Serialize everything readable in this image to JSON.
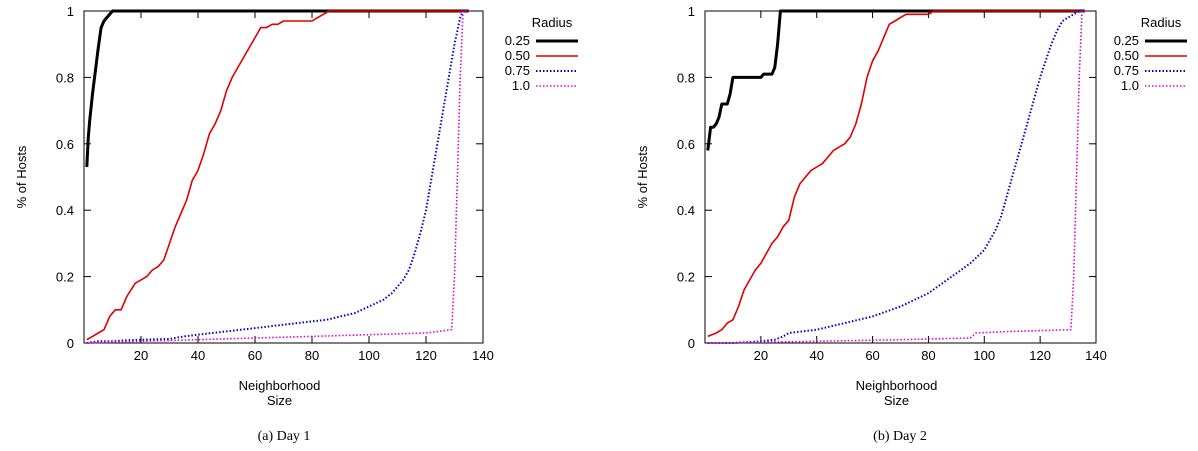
{
  "charts": [
    {
      "caption": "(a) Day 1",
      "chart_data": {
        "type": "line",
        "xlabel": [
          "Neighborhood",
          "Size"
        ],
        "ylabel": "% of Hosts",
        "xlim": [
          0,
          140
        ],
        "ylim": [
          0,
          1
        ],
        "xticks": [
          20,
          40,
          60,
          80,
          100,
          120,
          140
        ],
        "yticks": [
          0,
          0.2,
          0.4,
          0.6,
          0.8,
          1
        ],
        "ytick_labels": [
          "0",
          "0.2",
          "0.4",
          "0.6",
          "0.8",
          "1"
        ],
        "legend": {
          "title": "Radius",
          "placement": "right-outside-top"
        },
        "series": [
          {
            "name": "0.25",
            "color": "#000000",
            "style": "solid",
            "width": 3,
            "points": [
              [
                1,
                0.53
              ],
              [
                1.5,
                0.62
              ],
              [
                2,
                0.67
              ],
              [
                3,
                0.75
              ],
              [
                4,
                0.82
              ],
              [
                5,
                0.89
              ],
              [
                6,
                0.95
              ],
              [
                7,
                0.97
              ],
              [
                8,
                0.98
              ],
              [
                9,
                0.99
              ],
              [
                10,
                1.0
              ],
              [
                135,
                1.0
              ]
            ]
          },
          {
            "name": "0.50",
            "color": "#e00000",
            "style": "solid",
            "width": 1.6,
            "points": [
              [
                1,
                0.01
              ],
              [
                3,
                0.02
              ],
              [
                5,
                0.03
              ],
              [
                7,
                0.04
              ],
              [
                9,
                0.08
              ],
              [
                11,
                0.1
              ],
              [
                13,
                0.1
              ],
              [
                15,
                0.14
              ],
              [
                18,
                0.18
              ],
              [
                20,
                0.19
              ],
              [
                22,
                0.2
              ],
              [
                24,
                0.22
              ],
              [
                26,
                0.23
              ],
              [
                28,
                0.25
              ],
              [
                30,
                0.3
              ],
              [
                32,
                0.35
              ],
              [
                34,
                0.39
              ],
              [
                36,
                0.43
              ],
              [
                38,
                0.49
              ],
              [
                40,
                0.52
              ],
              [
                42,
                0.57
              ],
              [
                44,
                0.63
              ],
              [
                46,
                0.66
              ],
              [
                48,
                0.7
              ],
              [
                50,
                0.76
              ],
              [
                52,
                0.8
              ],
              [
                54,
                0.83
              ],
              [
                56,
                0.86
              ],
              [
                58,
                0.89
              ],
              [
                60,
                0.92
              ],
              [
                62,
                0.95
              ],
              [
                64,
                0.95
              ],
              [
                66,
                0.96
              ],
              [
                68,
                0.96
              ],
              [
                70,
                0.97
              ],
              [
                75,
                0.97
              ],
              [
                80,
                0.97
              ],
              [
                82,
                0.98
              ],
              [
                84,
                0.99
              ],
              [
                86,
                1.0
              ],
              [
                135,
                1.0
              ]
            ]
          },
          {
            "name": "0.75",
            "color": "#0000cc",
            "style": "dotted",
            "width": 2,
            "points": [
              [
                1,
                0.0
              ],
              [
                5,
                0.005
              ],
              [
                10,
                0.005
              ],
              [
                15,
                0.008
              ],
              [
                20,
                0.01
              ],
              [
                30,
                0.012
              ],
              [
                35,
                0.02
              ],
              [
                40,
                0.025
              ],
              [
                45,
                0.03
              ],
              [
                50,
                0.035
              ],
              [
                55,
                0.04
              ],
              [
                60,
                0.045
              ],
              [
                65,
                0.05
              ],
              [
                70,
                0.055
              ],
              [
                75,
                0.06
              ],
              [
                80,
                0.065
              ],
              [
                85,
                0.07
              ],
              [
                90,
                0.08
              ],
              [
                95,
                0.09
              ],
              [
                100,
                0.11
              ],
              [
                105,
                0.13
              ],
              [
                108,
                0.15
              ],
              [
                110,
                0.17
              ],
              [
                112,
                0.19
              ],
              [
                114,
                0.22
              ],
              [
                116,
                0.27
              ],
              [
                118,
                0.33
              ],
              [
                120,
                0.4
              ],
              [
                122,
                0.5
              ],
              [
                124,
                0.6
              ],
              [
                126,
                0.7
              ],
              [
                128,
                0.8
              ],
              [
                130,
                0.9
              ],
              [
                132,
                0.98
              ],
              [
                133,
                1.0
              ],
              [
                135,
                1.0
              ]
            ]
          },
          {
            "name": "1.0",
            "color": "#dd00dd",
            "style": "dotted",
            "width": 1.6,
            "points": [
              [
                1,
                0.0
              ],
              [
                20,
                0.005
              ],
              [
                40,
                0.01
              ],
              [
                60,
                0.015
              ],
              [
                80,
                0.02
              ],
              [
                100,
                0.025
              ],
              [
                120,
                0.03
              ],
              [
                129,
                0.04
              ],
              [
                130,
                0.2
              ],
              [
                131,
                0.5
              ],
              [
                132,
                0.8
              ],
              [
                133,
                1.0
              ],
              [
                135,
                1.0
              ]
            ]
          }
        ]
      }
    },
    {
      "caption": "(b) Day 2",
      "chart_data": {
        "type": "line",
        "xlabel": [
          "Neighborhood",
          "Size"
        ],
        "ylabel": "% of Hosts",
        "xlim": [
          0,
          140
        ],
        "ylim": [
          0,
          1
        ],
        "xticks": [
          20,
          40,
          60,
          80,
          100,
          120,
          140
        ],
        "yticks": [
          0,
          0.2,
          0.4,
          0.6,
          0.8,
          1
        ],
        "ytick_labels": [
          "0",
          "0.2",
          "0.4",
          "0.6",
          "0.8",
          "1"
        ],
        "legend": {
          "title": "Radius",
          "placement": "right-outside-top"
        },
        "series": [
          {
            "name": "0.25",
            "color": "#000000",
            "style": "solid",
            "width": 3,
            "points": [
              [
                1,
                0.58
              ],
              [
                2,
                0.65
              ],
              [
                3,
                0.65
              ],
              [
                4,
                0.66
              ],
              [
                5,
                0.68
              ],
              [
                6,
                0.72
              ],
              [
                8,
                0.72
              ],
              [
                9,
                0.75
              ],
              [
                10,
                0.8
              ],
              [
                15,
                0.8
              ],
              [
                20,
                0.8
              ],
              [
                21,
                0.81
              ],
              [
                24,
                0.81
              ],
              [
                25,
                0.83
              ],
              [
                26,
                0.9
              ],
              [
                27,
                1.0
              ],
              [
                136,
                1.0
              ]
            ]
          },
          {
            "name": "0.50",
            "color": "#e00000",
            "style": "solid",
            "width": 1.6,
            "points": [
              [
                1,
                0.02
              ],
              [
                4,
                0.03
              ],
              [
                6,
                0.04
              ],
              [
                8,
                0.06
              ],
              [
                10,
                0.07
              ],
              [
                12,
                0.11
              ],
              [
                14,
                0.16
              ],
              [
                16,
                0.19
              ],
              [
                18,
                0.22
              ],
              [
                20,
                0.24
              ],
              [
                22,
                0.27
              ],
              [
                24,
                0.3
              ],
              [
                26,
                0.32
              ],
              [
                28,
                0.35
              ],
              [
                30,
                0.37
              ],
              [
                32,
                0.44
              ],
              [
                34,
                0.48
              ],
              [
                36,
                0.5
              ],
              [
                38,
                0.52
              ],
              [
                40,
                0.53
              ],
              [
                42,
                0.54
              ],
              [
                44,
                0.56
              ],
              [
                46,
                0.58
              ],
              [
                48,
                0.59
              ],
              [
                50,
                0.6
              ],
              [
                52,
                0.62
              ],
              [
                54,
                0.66
              ],
              [
                56,
                0.72
              ],
              [
                58,
                0.8
              ],
              [
                60,
                0.85
              ],
              [
                62,
                0.88
              ],
              [
                64,
                0.92
              ],
              [
                66,
                0.96
              ],
              [
                68,
                0.97
              ],
              [
                70,
                0.98
              ],
              [
                72,
                0.99
              ],
              [
                80,
                0.99
              ],
              [
                82,
                1.0
              ],
              [
                136,
                1.0
              ]
            ]
          },
          {
            "name": "0.75",
            "color": "#0000cc",
            "style": "dotted",
            "width": 2,
            "points": [
              [
                1,
                0.0
              ],
              [
                10,
                0.0
              ],
              [
                20,
                0.005
              ],
              [
                25,
                0.01
              ],
              [
                28,
                0.02
              ],
              [
                30,
                0.03
              ],
              [
                40,
                0.04
              ],
              [
                50,
                0.06
              ],
              [
                60,
                0.08
              ],
              [
                70,
                0.11
              ],
              [
                80,
                0.15
              ],
              [
                85,
                0.18
              ],
              [
                90,
                0.21
              ],
              [
                95,
                0.24
              ],
              [
                100,
                0.28
              ],
              [
                104,
                0.34
              ],
              [
                106,
                0.38
              ],
              [
                108,
                0.44
              ],
              [
                110,
                0.5
              ],
              [
                112,
                0.56
              ],
              [
                114,
                0.62
              ],
              [
                116,
                0.68
              ],
              [
                118,
                0.74
              ],
              [
                120,
                0.8
              ],
              [
                122,
                0.85
              ],
              [
                124,
                0.9
              ],
              [
                126,
                0.94
              ],
              [
                128,
                0.97
              ],
              [
                130,
                0.98
              ],
              [
                132,
                0.99
              ],
              [
                134,
                1.0
              ],
              [
                136,
                1.0
              ]
            ]
          },
          {
            "name": "1.0",
            "color": "#dd00dd",
            "style": "dotted",
            "width": 1.6,
            "points": [
              [
                1,
                0.0
              ],
              [
                40,
                0.005
              ],
              [
                70,
                0.01
              ],
              [
                95,
                0.015
              ],
              [
                97,
                0.03
              ],
              [
                110,
                0.035
              ],
              [
                131,
                0.04
              ],
              [
                132,
                0.2
              ],
              [
                133,
                0.5
              ],
              [
                134,
                0.8
              ],
              [
                135,
                1.0
              ],
              [
                136,
                1.0
              ]
            ]
          }
        ]
      }
    }
  ]
}
